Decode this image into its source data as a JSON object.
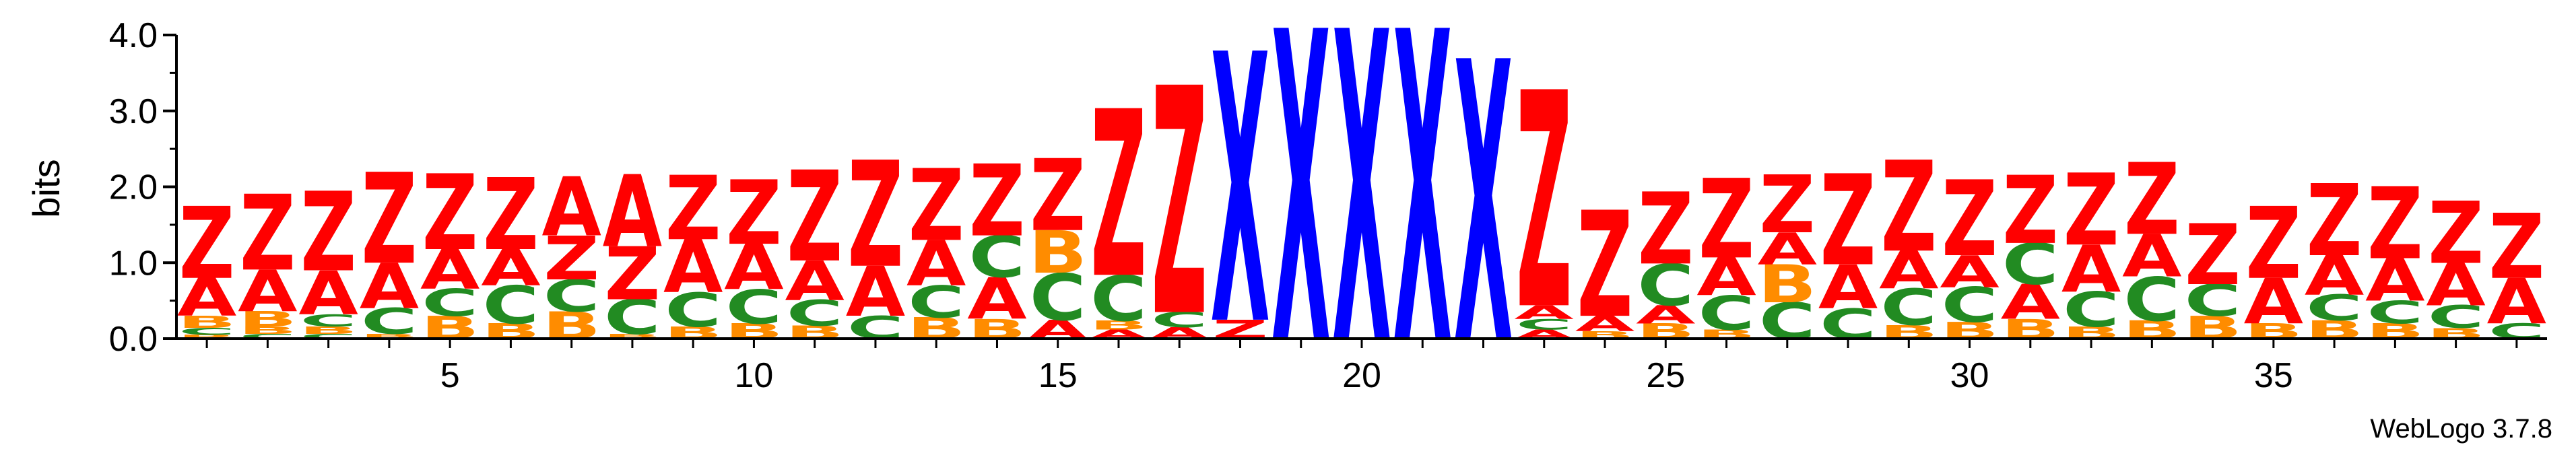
{
  "chart_data": {
    "type": "sequence_logo",
    "ylabel": "bits",
    "ylim": [
      0,
      4.0
    ],
    "yticks": [
      {
        "value": 0.0,
        "label": "0.0"
      },
      {
        "value": 1.0,
        "label": "1.0"
      },
      {
        "value": 2.0,
        "label": "2.0"
      },
      {
        "value": 3.0,
        "label": "3.0"
      },
      {
        "value": 4.0,
        "label": "4.0"
      }
    ],
    "xticks": [
      "5",
      "10",
      "15",
      "20",
      "25",
      "30",
      "35"
    ],
    "xtick_positions": [
      5,
      10,
      15,
      20,
      25,
      30,
      35
    ],
    "positions_count": 39,
    "footer": "WebLogo 3.7.8",
    "colors": {
      "Z": "#ff0000",
      "A": "#ff0000",
      "X": "#0000ff",
      "C": "#228b22",
      "B": "#ff8c00"
    },
    "columns": [
      [
        [
          "B",
          0.05
        ],
        [
          "C",
          0.09
        ],
        [
          "B",
          0.16
        ],
        [
          "A",
          0.5
        ],
        [
          "Z",
          0.95
        ]
      ],
      [
        [
          "C",
          0.06
        ],
        [
          "B",
          0.1
        ],
        [
          "B",
          0.2
        ],
        [
          "A",
          0.55
        ],
        [
          "Z",
          1.0
        ]
      ],
      [
        [
          "C",
          0.06
        ],
        [
          "B",
          0.1
        ],
        [
          "C",
          0.16
        ],
        [
          "A",
          0.58
        ],
        [
          "Z",
          1.05
        ]
      ],
      [
        [
          "B",
          0.06
        ],
        [
          "C",
          0.34
        ],
        [
          "A",
          0.6
        ],
        [
          "Z",
          1.2
        ]
      ],
      [
        [
          "B",
          0.3
        ],
        [
          "C",
          0.36
        ],
        [
          "A",
          0.52
        ],
        [
          "Z",
          1.0
        ]
      ],
      [
        [
          "B",
          0.2
        ],
        [
          "C",
          0.5
        ],
        [
          "A",
          0.48
        ],
        [
          "Z",
          0.95
        ]
      ],
      [
        [
          "B",
          0.36
        ],
        [
          "C",
          0.42
        ],
        [
          "Z",
          0.58
        ],
        [
          "A",
          0.78
        ]
      ],
      [
        [
          "B",
          0.06
        ],
        [
          "C",
          0.46
        ],
        [
          "Z",
          0.7
        ],
        [
          "A",
          0.95
        ]
      ],
      [
        [
          "B",
          0.16
        ],
        [
          "C",
          0.45
        ],
        [
          "A",
          0.7
        ],
        [
          "Z",
          0.85
        ]
      ],
      [
        [
          "B",
          0.2
        ],
        [
          "C",
          0.45
        ],
        [
          "A",
          0.6
        ],
        [
          "Z",
          0.85
        ]
      ],
      [
        [
          "B",
          0.17
        ],
        [
          "C",
          0.34
        ],
        [
          "A",
          0.52
        ],
        [
          "Z",
          1.2
        ]
      ],
      [
        [
          "C",
          0.3
        ],
        [
          "A",
          0.66
        ],
        [
          "Z",
          1.4
        ]
      ],
      [
        [
          "B",
          0.28
        ],
        [
          "C",
          0.42
        ],
        [
          "A",
          0.6
        ],
        [
          "Z",
          0.95
        ]
      ],
      [
        [
          "B",
          0.26
        ],
        [
          "A",
          0.55
        ],
        [
          "C",
          0.55
        ],
        [
          "Z",
          0.95
        ]
      ],
      [
        [
          "A",
          0.25
        ],
        [
          "C",
          0.62
        ],
        [
          "B",
          0.56
        ],
        [
          "Z",
          0.95
        ]
      ],
      [
        [
          "A",
          0.12
        ],
        [
          "B",
          0.12
        ],
        [
          "C",
          0.6
        ],
        [
          "Z",
          2.2
        ]
      ],
      [
        [
          "A",
          0.15
        ],
        [
          "C",
          0.2
        ],
        [
          "Z",
          3.0
        ]
      ],
      [
        [
          "Z",
          0.25
        ],
        [
          "X",
          3.55
        ]
      ],
      [
        [
          "X",
          4.1
        ]
      ],
      [
        [
          "X",
          4.1
        ]
      ],
      [
        [
          "X",
          4.1
        ]
      ],
      [
        [
          "X",
          3.7
        ]
      ],
      [
        [
          "A",
          0.12
        ],
        [
          "C",
          0.14
        ],
        [
          "A",
          0.18
        ],
        [
          "Z",
          2.85
        ]
      ],
      [
        [
          "B",
          0.1
        ],
        [
          "A",
          0.2
        ],
        [
          "Z",
          1.4
        ]
      ],
      [
        [
          "B",
          0.2
        ],
        [
          "A",
          0.24
        ],
        [
          "C",
          0.55
        ],
        [
          "Z",
          0.95
        ]
      ],
      [
        [
          "B",
          0.12
        ],
        [
          "C",
          0.45
        ],
        [
          "A",
          0.5
        ],
        [
          "Z",
          1.05
        ]
      ],
      [
        [
          "C",
          0.48
        ],
        [
          "B",
          0.5
        ],
        [
          "A",
          0.42
        ],
        [
          "Z",
          0.76
        ]
      ],
      [
        [
          "C",
          0.4
        ],
        [
          "A",
          0.58
        ],
        [
          "Z",
          1.2
        ]
      ],
      [
        [
          "B",
          0.18
        ],
        [
          "C",
          0.48
        ],
        [
          "A",
          0.5
        ],
        [
          "Z",
          1.2
        ]
      ],
      [
        [
          "B",
          0.22
        ],
        [
          "C",
          0.46
        ],
        [
          "A",
          0.42
        ],
        [
          "Z",
          1.0
        ]
      ],
      [
        [
          "B",
          0.26
        ],
        [
          "A",
          0.46
        ],
        [
          "C",
          0.54
        ],
        [
          "Z",
          0.9
        ]
      ],
      [
        [
          "B",
          0.16
        ],
        [
          "C",
          0.46
        ],
        [
          "A",
          0.62
        ],
        [
          "Z",
          0.95
        ]
      ],
      [
        [
          "B",
          0.24
        ],
        [
          "C",
          0.58
        ],
        [
          "A",
          0.56
        ],
        [
          "Z",
          0.95
        ]
      ],
      [
        [
          "B",
          0.3
        ],
        [
          "C",
          0.42
        ],
        [
          "Z",
          0.8
        ]
      ],
      [
        [
          "B",
          0.2
        ],
        [
          "A",
          0.6
        ],
        [
          "Z",
          0.95
        ]
      ],
      [
        [
          "B",
          0.24
        ],
        [
          "C",
          0.34
        ],
        [
          "A",
          0.52
        ],
        [
          "Z",
          0.95
        ]
      ],
      [
        [
          "B",
          0.2
        ],
        [
          "C",
          0.3
        ],
        [
          "A",
          0.56
        ],
        [
          "Z",
          0.95
        ]
      ],
      [
        [
          "B",
          0.14
        ],
        [
          "C",
          0.3
        ],
        [
          "A",
          0.56
        ],
        [
          "Z",
          0.82
        ]
      ],
      [
        [
          "C",
          0.2
        ],
        [
          "A",
          0.6
        ],
        [
          "Z",
          0.86
        ]
      ]
    ]
  }
}
